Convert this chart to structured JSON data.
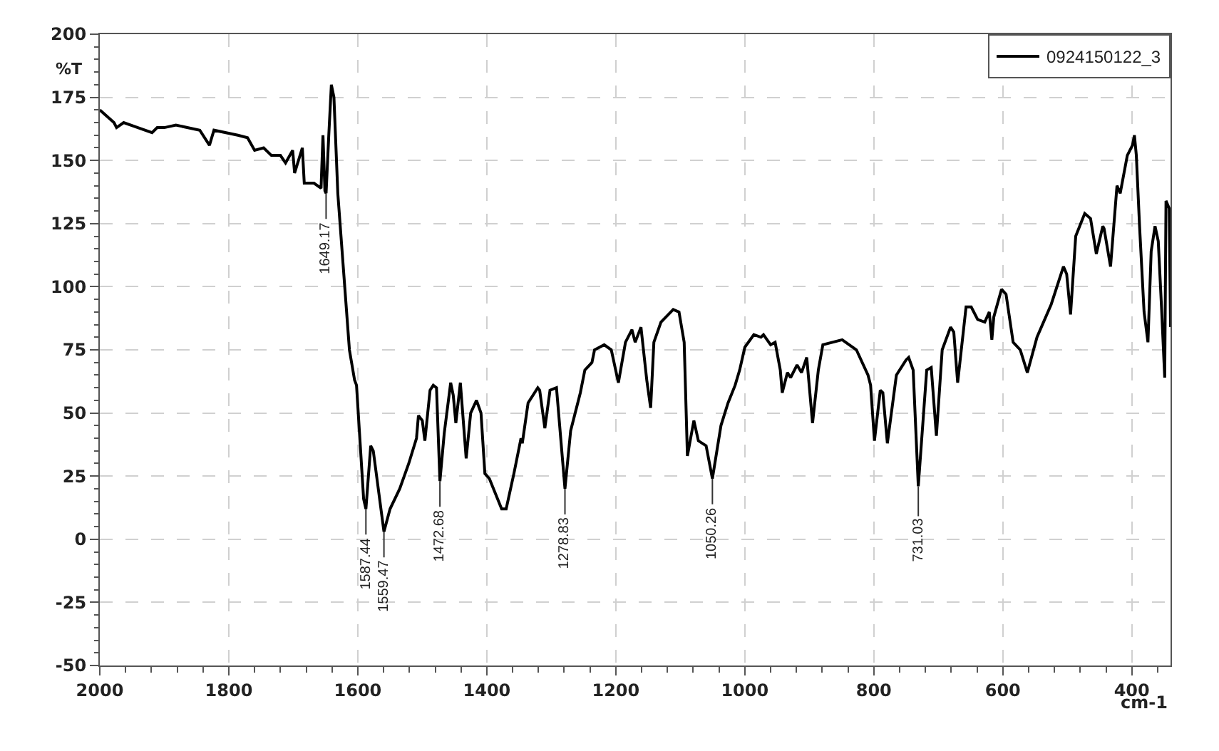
{
  "chart_data": {
    "type": "line",
    "xlabel": "cm-1",
    "ylabel": "%T",
    "xlim": [
      2000,
      340
    ],
    "ylim": [
      -50,
      200
    ],
    "xticks": [
      2000,
      {
        "value": 1960,
        "label": null
      },
      {
        "value": 1920,
        "label": null
      },
      {
        "value": 1880,
        "label": null
      },
      {
        "value": 1840,
        "label": null
      },
      1800,
      {
        "value": 1760,
        "label": null
      },
      {
        "value": 1720,
        "label": null
      },
      {
        "value": 1680,
        "label": null
      },
      {
        "value": 1640,
        "label": null
      },
      1600,
      {
        "value": 1560,
        "label": null
      },
      {
        "value": 1520,
        "label": null
      },
      {
        "value": 1480,
        "label": null
      },
      {
        "value": 1440,
        "label": null
      },
      1400,
      {
        "value": 1360,
        "label": null
      },
      {
        "value": 1320,
        "label": null
      },
      {
        "value": 1280,
        "label": null
      },
      {
        "value": 1240,
        "label": null
      },
      1200,
      {
        "value": 1160,
        "label": null
      },
      {
        "value": 1120,
        "label": null
      },
      {
        "value": 1080,
        "label": null
      },
      {
        "value": 1040,
        "label": null
      },
      1000,
      {
        "value": 960,
        "label": null
      },
      {
        "value": 920,
        "label": null
      },
      {
        "value": 880,
        "label": null
      },
      {
        "value": 840,
        "label": null
      },
      800,
      {
        "value": 760,
        "label": null
      },
      {
        "value": 720,
        "label": null
      },
      {
        "value": 680,
        "label": null
      },
      {
        "value": 640,
        "label": null
      },
      600,
      {
        "value": 560,
        "label": null
      },
      {
        "value": 520,
        "label": null
      },
      {
        "value": 480,
        "label": null
      },
      {
        "value": 440,
        "label": null
      },
      400,
      {
        "value": 360,
        "label": null
      }
    ],
    "yticks": [
      -50,
      {
        "value": -45,
        "label": null
      },
      {
        "value": -40,
        "label": null
      },
      {
        "value": -35,
        "label": null
      },
      {
        "value": -30,
        "label": null
      },
      -25,
      {
        "value": -20,
        "label": null
      },
      {
        "value": -15,
        "label": null
      },
      {
        "value": -10,
        "label": null
      },
      {
        "value": -5,
        "label": null
      },
      0,
      {
        "value": 5,
        "label": null
      },
      {
        "value": 10,
        "label": null
      },
      {
        "value": 15,
        "label": null
      },
      {
        "value": 20,
        "label": null
      },
      25,
      {
        "value": 30,
        "label": null
      },
      {
        "value": 35,
        "label": null
      },
      {
        "value": 40,
        "label": null
      },
      {
        "value": 45,
        "label": null
      },
      50,
      {
        "value": 55,
        "label": null
      },
      {
        "value": 60,
        "label": null
      },
      {
        "value": 65,
        "label": null
      },
      {
        "value": 70,
        "label": null
      },
      75,
      {
        "value": 80,
        "label": null
      },
      {
        "value": 85,
        "label": null
      },
      {
        "value": 90,
        "label": null
      },
      {
        "value": 95,
        "label": null
      },
      100,
      {
        "value": 105,
        "label": null
      },
      {
        "value": 110,
        "label": null
      },
      {
        "value": 115,
        "label": null
      },
      {
        "value": 120,
        "label": null
      },
      125,
      {
        "value": 130,
        "label": null
      },
      {
        "value": 135,
        "label": null
      },
      {
        "value": 140,
        "label": null
      },
      {
        "value": 145,
        "label": null
      },
      150,
      {
        "value": 155,
        "label": null
      },
      {
        "value": 160,
        "label": null
      },
      {
        "value": 165,
        "label": null
      },
      {
        "value": 170,
        "label": null
      },
      175,
      {
        "value": 180,
        "label": null
      },
      {
        "value": 185,
        "label": null
      },
      {
        "value": 190,
        "label": null
      },
      {
        "value": 195,
        "label": null
      },
      200
    ],
    "grid": true,
    "legend": "top right",
    "line_style": "solid",
    "series": [
      {
        "name": "0924150122_3",
        "color": "#000000",
        "x": [
          2000,
          1978,
          1974,
          1963,
          1941,
          1919,
          1911,
          1900,
          1882,
          1845,
          1830,
          1823,
          1786,
          1771,
          1760,
          1746,
          1734,
          1720,
          1712,
          1701,
          1698,
          1686,
          1683,
          1668,
          1657,
          1654,
          1651,
          1649.17,
          1645,
          1641,
          1637,
          1631,
          1613,
          1605,
          1602,
          1591,
          1587.44,
          1580,
          1576,
          1559.47,
          1550,
          1535,
          1521,
          1509,
          1506,
          1500,
          1496,
          1488,
          1483,
          1478,
          1472.68,
          1466,
          1456,
          1452,
          1448,
          1441,
          1432,
          1425,
          1416,
          1409,
          1403,
          1396,
          1377,
          1370,
          1358,
          1347,
          1345,
          1336,
          1321,
          1318,
          1310,
          1302,
          1292,
          1278.83,
          1270,
          1255,
          1248,
          1237,
          1233,
          1218,
          1207,
          1196,
          1185,
          1175,
          1170,
          1161,
          1152,
          1146,
          1141,
          1130,
          1111,
          1102,
          1094,
          1089,
          1079,
          1072,
          1060,
          1050.26,
          1037,
          1026,
          1015,
          1008,
          1000,
          986,
          975,
          971,
          960,
          953,
          945,
          942,
          934,
          929,
          919,
          912,
          904,
          895,
          886,
          879,
          849,
          827,
          809,
          805,
          799,
          790,
          786,
          779,
          765,
          750,
          746,
          739,
          731.03,
          718,
          711,
          703,
          694,
          681,
          676,
          670,
          657,
          649,
          639,
          628,
          621,
          617,
          614,
          602,
          595,
          584,
          573,
          562,
          547,
          525,
          506,
          501,
          495,
          487,
          473,
          464,
          455,
          445,
          443,
          433,
          423,
          418,
          407,
          399,
          396,
          393,
          388,
          381,
          375,
          370,
          364,
          359,
          354,
          349,
          347,
          342,
          340
        ],
        "values": [
          170,
          165,
          163,
          165,
          163,
          161,
          163,
          163,
          164,
          162,
          156,
          162,
          160,
          159,
          154,
          155,
          152,
          152,
          149,
          154,
          145,
          155,
          141,
          141,
          139,
          160,
          138,
          137,
          160,
          180,
          175,
          137,
          75,
          63,
          61,
          16,
          12,
          37,
          35,
          3,
          12,
          20,
          30,
          40,
          49,
          47,
          39,
          59,
          61,
          60,
          23,
          42,
          62,
          57,
          46,
          62,
          32,
          50,
          55,
          50,
          26,
          24,
          12,
          12,
          26,
          40,
          38,
          54,
          60,
          59,
          44,
          59,
          60,
          20,
          43,
          58,
          67,
          70,
          75,
          77,
          75,
          62,
          78,
          83,
          78,
          84,
          63,
          52,
          78,
          86,
          91,
          90,
          78,
          33,
          47,
          39,
          37,
          24,
          45,
          54,
          61,
          67,
          76,
          81,
          80,
          81,
          77,
          78,
          67,
          58,
          66,
          64,
          69,
          66,
          72,
          46,
          67,
          77,
          79,
          75,
          65,
          61,
          39,
          59,
          58,
          38,
          65,
          71,
          72,
          67,
          21,
          67,
          68,
          41,
          75,
          84,
          82,
          62,
          92,
          92,
          87,
          86,
          90,
          79,
          88,
          99,
          97,
          78,
          75,
          66,
          80,
          93,
          108,
          105,
          89,
          120,
          129,
          127,
          113,
          124,
          123,
          108,
          140,
          137,
          152,
          156,
          160,
          152,
          124,
          90,
          78,
          114,
          124,
          118,
          92,
          64,
          134,
          131,
          84
        ]
      }
    ],
    "annotations": [
      {
        "text": "1649.17",
        "x": 1649.17,
        "y": 137
      },
      {
        "text": "1587.44",
        "x": 1587.44,
        "y": 12
      },
      {
        "text": "1559.47",
        "x": 1559.47,
        "y": 3
      },
      {
        "text": "1472.68",
        "x": 1472.68,
        "y": 23
      },
      {
        "text": "1278.83",
        "x": 1278.83,
        "y": 20
      },
      {
        "text": "1050.26",
        "x": 1050.26,
        "y": 24
      },
      {
        "text": "731.03",
        "x": 731.03,
        "y": 21
      }
    ]
  }
}
